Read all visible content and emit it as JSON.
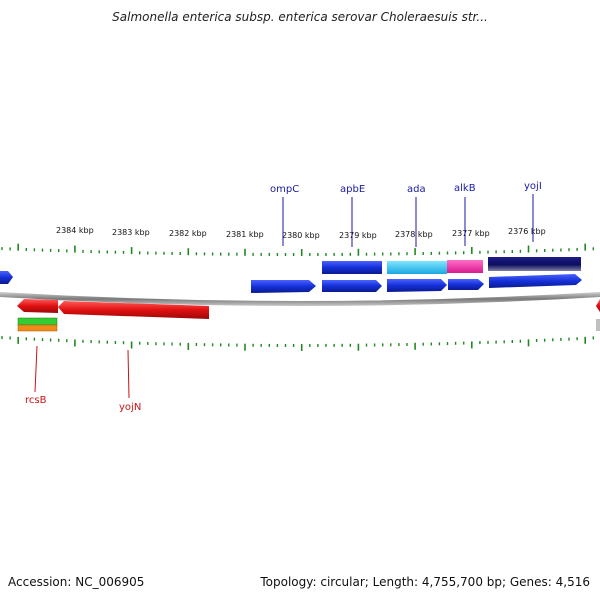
{
  "title": "Salmonella enterica subsp. enterica serovar Choleraesuis str...",
  "footer": {
    "accession": "Accession: NC_006905",
    "topology": "Topology: circular; Length: 4,755,700 bp; Genes: 4,516"
  },
  "colors": {
    "forward_gene": "#1530d8",
    "reverse_gene": "#e01010",
    "backbone": "#8a8a8a",
    "ticks": "#1e8a1e",
    "label_top": "#1a1aa0",
    "label_bottom": "#c81414"
  },
  "kbp_labels": [
    "2384 kbp",
    "2383 kbp",
    "2382 kbp",
    "2381 kbp",
    "2380 kbp",
    "2379 kbp",
    "2378 kbp",
    "2377 kbp",
    "2376 kbp"
  ],
  "gene_labels_top": [
    "ompC",
    "apbE",
    "ada",
    "alkB",
    "yojI"
  ],
  "gene_labels_bottom": [
    "rcsB",
    "yojN"
  ]
}
